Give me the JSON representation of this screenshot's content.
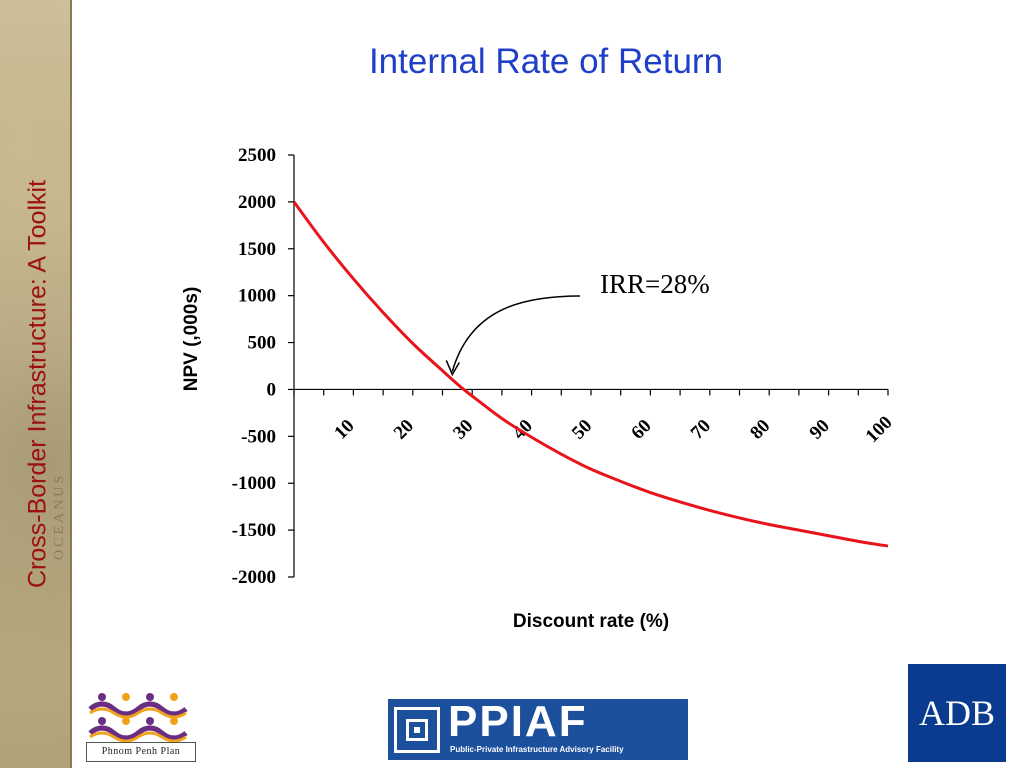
{
  "page": {
    "title": "Internal Rate of Return",
    "sidebar_title": "Cross-Border Infrastructure: A Toolkit",
    "sidebar_deco": "OCEANUS"
  },
  "logos": {
    "phnom_penh": "Phnom Penh Plan",
    "ppiaf_word": "PPIAF",
    "ppiaf_sub": "Public-Private Infrastructure Advisory Facility",
    "adb": "ADB"
  },
  "colors": {
    "title": "#1f3fc8",
    "series_line": "#e8141c",
    "sidebar_title": "#9c1010"
  },
  "chart_data": {
    "type": "line",
    "title": "",
    "xlabel": "Discount rate (%)",
    "ylabel": "NPV (,000s)",
    "xlim": [
      0,
      100
    ],
    "ylim": [
      -2000,
      2500
    ],
    "yticks": [
      2500,
      2000,
      1500,
      1000,
      500,
      0,
      -500,
      -1000,
      -1500,
      -2000
    ],
    "xticks": [
      10,
      20,
      30,
      40,
      50,
      60,
      70,
      80,
      90,
      100
    ],
    "grid": false,
    "series": [
      {
        "x": [
          0,
          5,
          10,
          15,
          20,
          25,
          28,
          30,
          35,
          40,
          45,
          50,
          55,
          60,
          65,
          70,
          75,
          80,
          85,
          90,
          95,
          100
        ],
        "y": [
          2000,
          1570,
          1180,
          820,
          490,
          200,
          30,
          -70,
          -310,
          -510,
          -690,
          -850,
          -980,
          -1100,
          -1200,
          -1290,
          -1370,
          -1440,
          -1500,
          -1560,
          -1620,
          -1670
        ]
      }
    ],
    "annotations": [
      {
        "text": "IRR=28%",
        "points_to": {
          "x": 28,
          "y": 0
        }
      }
    ]
  }
}
